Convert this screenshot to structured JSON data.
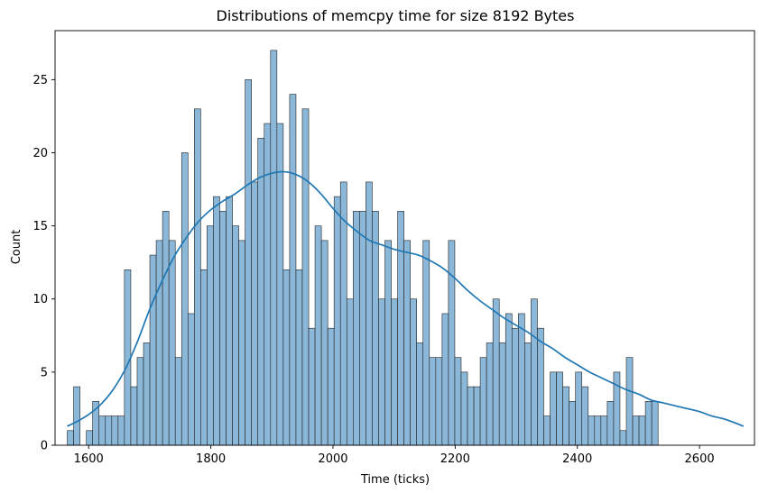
{
  "chart_data": {
    "type": "bar",
    "title": "Distributions of memcpy time for size 8192 Bytes",
    "xlabel": "Time (ticks)",
    "ylabel": "Count",
    "xlim": [
      1545,
      2690
    ],
    "ylim": [
      0,
      28.35
    ],
    "xticks": [
      1600,
      1800,
      2000,
      2200,
      2400,
      2600
    ],
    "yticks": [
      0,
      5,
      10,
      15,
      20,
      25
    ],
    "bins": {
      "start": 1565,
      "width": 10.4
    },
    "counts": [
      1,
      4,
      0,
      1,
      3,
      2,
      2,
      2,
      2,
      12,
      4,
      6,
      7,
      13,
      14,
      16,
      14,
      6,
      20,
      9,
      23,
      12,
      15,
      17,
      16,
      17,
      15,
      14,
      25,
      18,
      21,
      22,
      27,
      22,
      12,
      24,
      12,
      23,
      8,
      15,
      14,
      8,
      17,
      18,
      10,
      16,
      16,
      18,
      16,
      10,
      14,
      10,
      16,
      14,
      10,
      7,
      14,
      6,
      6,
      9,
      14,
      6,
      5,
      4,
      4,
      6,
      7,
      10,
      7,
      9,
      8,
      9,
      7,
      10,
      8,
      2,
      5,
      5,
      4,
      3,
      5,
      4,
      2,
      2,
      2,
      3,
      5,
      1,
      6,
      2,
      2,
      3,
      3
    ],
    "kde": {
      "x": [
        1565,
        1580,
        1600,
        1620,
        1640,
        1660,
        1680,
        1700,
        1720,
        1740,
        1760,
        1780,
        1800,
        1820,
        1840,
        1860,
        1880,
        1900,
        1920,
        1940,
        1960,
        1980,
        2000,
        2020,
        2040,
        2060,
        2080,
        2100,
        2120,
        2140,
        2160,
        2180,
        2200,
        2220,
        2240,
        2260,
        2280,
        2300,
        2320,
        2340,
        2360,
        2380,
        2400,
        2420,
        2440,
        2460,
        2480,
        2500,
        2520,
        2540,
        2560,
        2580,
        2600,
        2620,
        2640,
        2660,
        2672
      ],
      "y": [
        1.3,
        1.6,
        2.1,
        2.8,
        3.8,
        5.2,
        7.1,
        9.3,
        11.2,
        12.9,
        14.2,
        15.3,
        16.1,
        16.7,
        17.2,
        17.8,
        18.3,
        18.6,
        18.7,
        18.5,
        18.0,
        17.2,
        16.2,
        15.3,
        14.6,
        14.0,
        13.7,
        13.4,
        13.2,
        13.0,
        12.6,
        12.1,
        11.4,
        10.6,
        9.9,
        9.3,
        8.7,
        8.2,
        7.7,
        7.1,
        6.6,
        6.0,
        5.5,
        5.0,
        4.6,
        4.2,
        3.8,
        3.5,
        3.1,
        2.9,
        2.7,
        2.5,
        2.3,
        2.0,
        1.8,
        1.5,
        1.3
      ]
    },
    "color": "#1f77b4",
    "bar_fill": "#8bb8d9",
    "grid": false
  }
}
